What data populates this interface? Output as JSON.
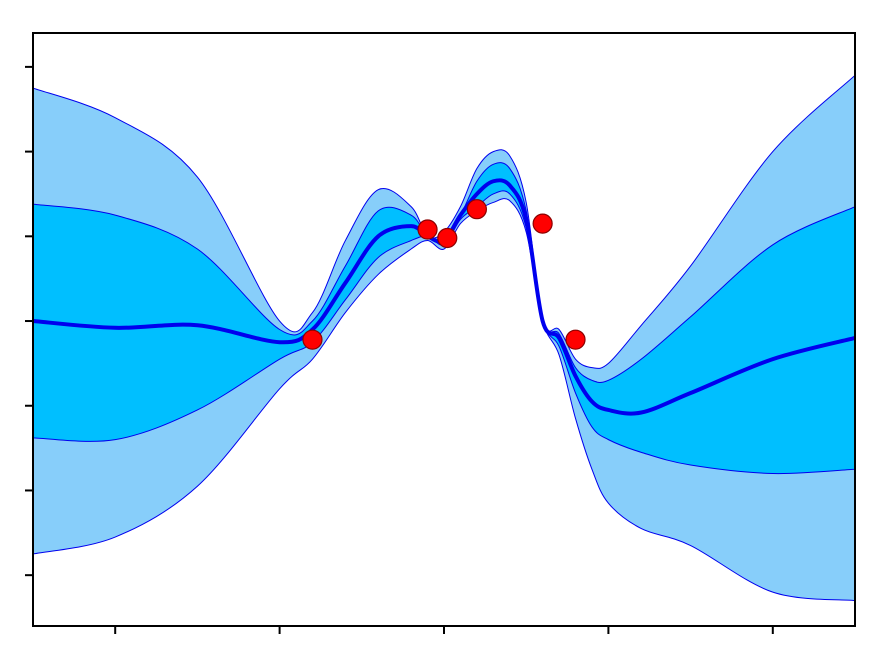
{
  "chart_data": {
    "type": "line",
    "title": "",
    "xlabel": "",
    "ylabel": "",
    "xlim": [
      -2.5,
      2.5
    ],
    "ylim": [
      -3.6,
      3.4
    ],
    "x_ticks": [
      -2,
      -1,
      0,
      1,
      2
    ],
    "y_ticks": [
      -3,
      -2,
      -1,
      0,
      1,
      2,
      3
    ],
    "tick_labels_visible": false,
    "grid": false,
    "legend": "none",
    "colors": {
      "mean": "#0000ee",
      "band_inner": "#00bfff",
      "band_outer": "#87cefa",
      "band_edge": "#0000ee",
      "observation_fill": "#ff0000",
      "observation_edge": "#8b0000"
    },
    "series": [
      {
        "role": "mean",
        "x": [
          -2.5,
          -2.0,
          -1.5,
          -1.0,
          -0.8,
          -0.6,
          -0.4,
          -0.2,
          -0.1,
          0.0,
          0.1,
          0.2,
          0.3,
          0.4,
          0.5,
          0.6,
          0.7,
          0.8,
          0.9,
          1.0,
          1.2,
          1.5,
          2.0,
          2.5
        ],
        "y": [
          0.0,
          -0.08,
          -0.05,
          -0.25,
          -0.1,
          0.45,
          1.0,
          1.12,
          1.0,
          0.95,
          1.25,
          1.5,
          1.65,
          1.6,
          1.2,
          0.0,
          -0.2,
          -0.65,
          -0.95,
          -1.05,
          -1.08,
          -0.85,
          -0.45,
          -0.2
        ]
      },
      {
        "role": "band_inner_upper",
        "x": [
          -2.5,
          -2.0,
          -1.5,
          -1.0,
          -0.8,
          -0.6,
          -0.4,
          -0.2,
          -0.1,
          0.0,
          0.1,
          0.2,
          0.3,
          0.4,
          0.5,
          0.6,
          0.7,
          0.8,
          0.9,
          1.0,
          1.2,
          1.5,
          2.0,
          2.5
        ],
        "y": [
          1.38,
          1.25,
          0.85,
          -0.1,
          0.0,
          0.65,
          1.3,
          1.25,
          1.0,
          0.98,
          1.25,
          1.65,
          1.85,
          1.8,
          1.3,
          0.0,
          -0.15,
          -0.55,
          -0.7,
          -0.7,
          -0.45,
          0.05,
          0.9,
          1.35
        ]
      },
      {
        "role": "band_inner_lower",
        "x": [
          -2.5,
          -2.0,
          -1.5,
          -1.0,
          -0.8,
          -0.6,
          -0.4,
          -0.2,
          -0.1,
          0.0,
          0.1,
          0.2,
          0.3,
          0.4,
          0.5,
          0.6,
          0.7,
          0.8,
          0.9,
          1.0,
          1.2,
          1.5,
          2.0,
          2.5
        ],
        "y": [
          -1.38,
          -1.4,
          -1.05,
          -0.45,
          -0.25,
          0.25,
          0.75,
          0.95,
          1.0,
          0.9,
          1.2,
          1.35,
          1.5,
          1.5,
          1.1,
          0.0,
          -0.3,
          -0.85,
          -1.25,
          -1.4,
          -1.55,
          -1.7,
          -1.8,
          -1.75
        ]
      },
      {
        "role": "band_outer_upper",
        "x": [
          -2.5,
          -2.0,
          -1.5,
          -1.0,
          -0.8,
          -0.6,
          -0.4,
          -0.2,
          -0.1,
          0.0,
          0.1,
          0.2,
          0.3,
          0.4,
          0.5,
          0.6,
          0.7,
          0.8,
          0.9,
          1.0,
          1.2,
          1.5,
          2.0,
          2.5
        ],
        "y": [
          2.75,
          2.4,
          1.7,
          0.0,
          0.1,
          0.95,
          1.55,
          1.35,
          1.0,
          1.05,
          1.35,
          1.8,
          2.0,
          1.95,
          1.4,
          0.0,
          -0.1,
          -0.45,
          -0.55,
          -0.5,
          -0.05,
          0.65,
          2.0,
          2.9
        ]
      },
      {
        "role": "band_outer_lower",
        "x": [
          -2.5,
          -2.0,
          -1.5,
          -1.0,
          -0.8,
          -0.6,
          -0.4,
          -0.2,
          -0.1,
          0.0,
          0.1,
          0.2,
          0.3,
          0.4,
          0.5,
          0.6,
          0.7,
          0.8,
          0.9,
          1.0,
          1.2,
          1.5,
          2.0,
          2.5
        ],
        "y": [
          -2.75,
          -2.55,
          -1.95,
          -0.8,
          -0.45,
          0.1,
          0.55,
          0.85,
          0.95,
          0.85,
          1.15,
          1.3,
          1.4,
          1.42,
          1.05,
          0.0,
          -0.4,
          -1.15,
          -1.75,
          -2.15,
          -2.45,
          -2.65,
          -3.2,
          -3.3
        ]
      }
    ],
    "observations": {
      "x": [
        -0.8,
        -0.1,
        0.02,
        0.2,
        0.6,
        0.8
      ],
      "y": [
        -0.22,
        1.08,
        0.98,
        1.32,
        1.15,
        -0.22
      ]
    }
  }
}
